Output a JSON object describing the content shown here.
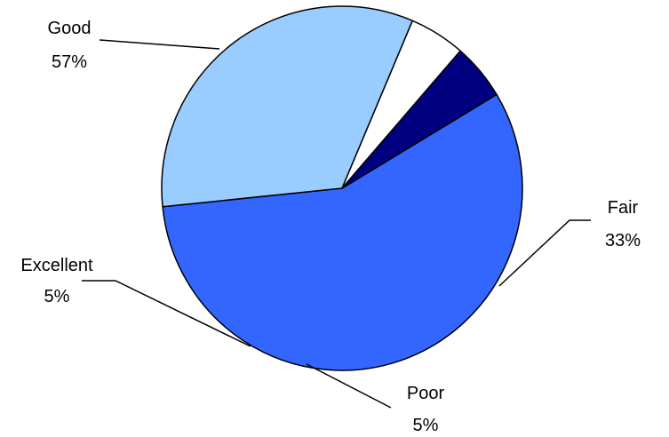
{
  "chart_data": {
    "type": "pie",
    "title": "",
    "legend": "none",
    "slices": [
      {
        "category": "Good",
        "value": 57,
        "percent_label": "57%",
        "color": "#3366FF"
      },
      {
        "category": "Fair",
        "value": 33,
        "percent_label": "33%",
        "color": "#99CCFF"
      },
      {
        "category": "Poor",
        "value": 5,
        "percent_label": "5%",
        "color": "#FFFFFF"
      },
      {
        "category": "Excellent",
        "value": 5,
        "percent_label": "5%",
        "color": "#000080"
      }
    ],
    "start_angle_deg": 0,
    "direction": "clockwise",
    "outline_color": "#000000"
  }
}
